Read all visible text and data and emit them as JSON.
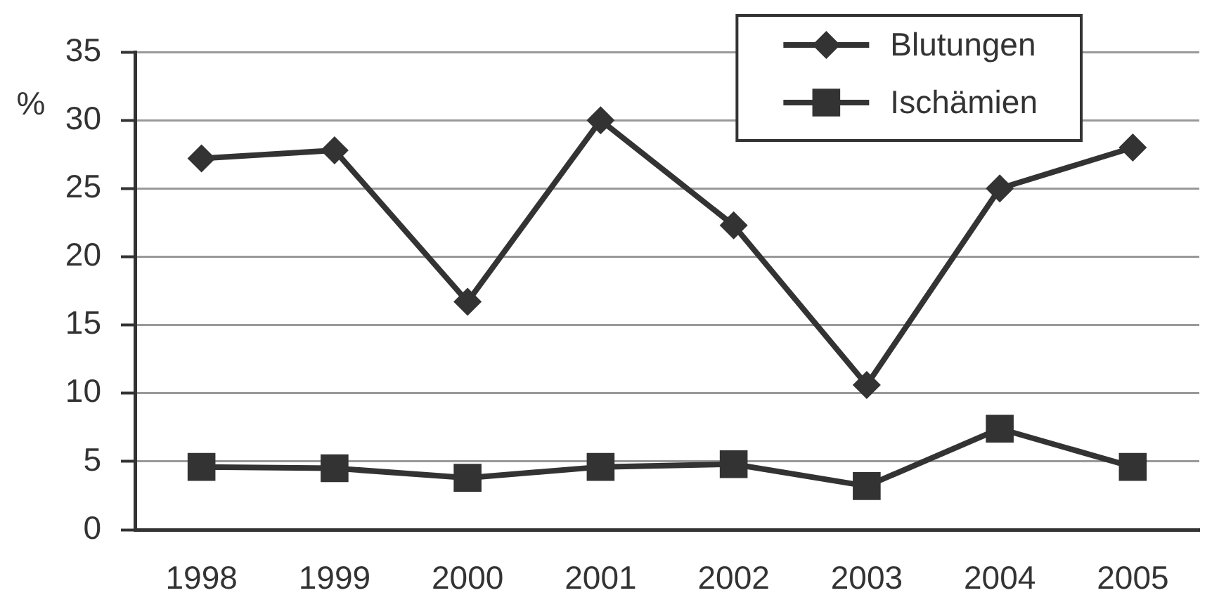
{
  "chart_data": {
    "type": "line",
    "ylabel": "%",
    "categories": [
      "1998",
      "1999",
      "2000",
      "2001",
      "2002",
      "2003",
      "2004",
      "2005"
    ],
    "series": [
      {
        "name": "Blutungen",
        "color": "#333333",
        "marker": "diamond",
        "values": [
          27.2,
          27.8,
          16.7,
          30.0,
          22.3,
          10.6,
          25.0,
          28.0
        ]
      },
      {
        "name": "Ischämien",
        "color": "#333333",
        "marker": "square",
        "values": [
          4.6,
          4.5,
          3.8,
          4.6,
          4.8,
          3.2,
          7.4,
          4.6
        ]
      }
    ],
    "ylim": [
      0,
      35
    ],
    "yticks": [
      0,
      5,
      10,
      15,
      20,
      25,
      30,
      35
    ],
    "grid": "y",
    "legend": "top right"
  }
}
